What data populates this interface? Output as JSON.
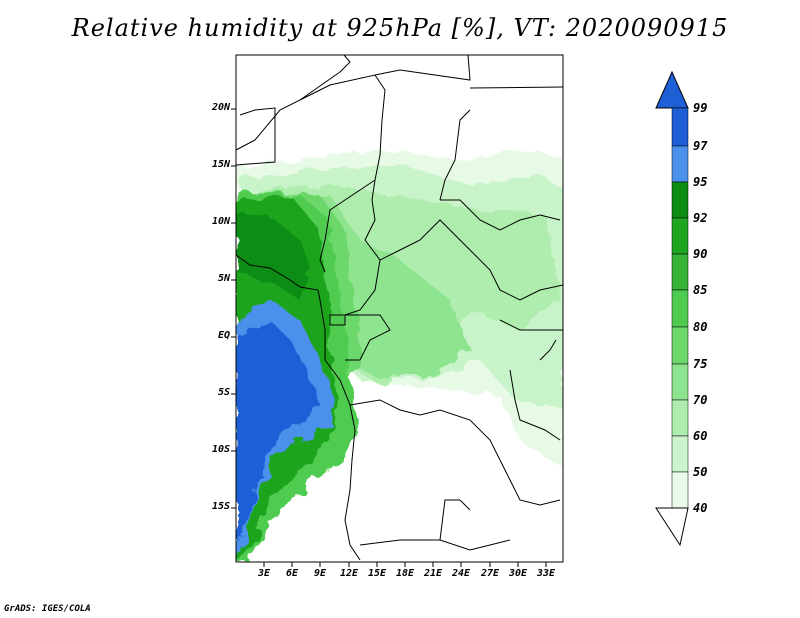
{
  "title": "Relative humidity at 925hPa [%], VT: 2020090915",
  "footer": "GrADS: IGES/COLA",
  "map": {
    "y_ticks": [
      "20N",
      "15N",
      "10N",
      "5N",
      "EQ",
      "5S",
      "10S",
      "15S"
    ],
    "x_ticks": [
      "3E",
      "6E",
      "9E",
      "12E",
      "15E",
      "18E",
      "21E",
      "24E",
      "27E",
      "30E",
      "33E"
    ]
  },
  "colorbar": {
    "labels": [
      "99",
      "97",
      "95",
      "92",
      "90",
      "85",
      "80",
      "75",
      "70",
      "60",
      "50",
      "40"
    ],
    "colors": [
      "#1e5fd6",
      "#2f74e0",
      "#4b90ea",
      "#0c8c14",
      "#1fa51f",
      "#37b337",
      "#4fcc4f",
      "#6cd86c",
      "#8fe48f",
      "#aeedae",
      "#cdf5cd",
      "#ebfbeb"
    ]
  }
}
